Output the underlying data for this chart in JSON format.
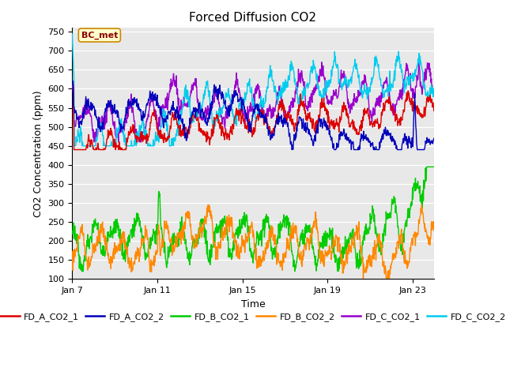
{
  "title": "Forced Diffusion CO2",
  "xlabel": "Time",
  "ylabel": "CO2 Concentration (ppm)",
  "ylim": [
    100,
    760
  ],
  "yticks": [
    100,
    150,
    200,
    250,
    300,
    350,
    400,
    450,
    500,
    550,
    600,
    650,
    700,
    750
  ],
  "xtick_labels": [
    "Jan 7",
    "Jan 11",
    "Jan 15",
    "Jan 19",
    "Jan 23"
  ],
  "xtick_pos": [
    0,
    4,
    8,
    12,
    16
  ],
  "xlim": [
    0,
    17
  ],
  "colors": {
    "FD_A_CO2_1": "#dd0000",
    "FD_A_CO2_2": "#0000bb",
    "FD_B_CO2_1": "#00cc00",
    "FD_B_CO2_2": "#ff8800",
    "FD_C_CO2_1": "#9900cc",
    "FD_C_CO2_2": "#00ccee"
  },
  "bg_color": "#e8e8e8",
  "plot_bg_color": "#e8e8e8",
  "annotation_text": "BC_met",
  "n_points": 1000,
  "linewidth": 1.0
}
